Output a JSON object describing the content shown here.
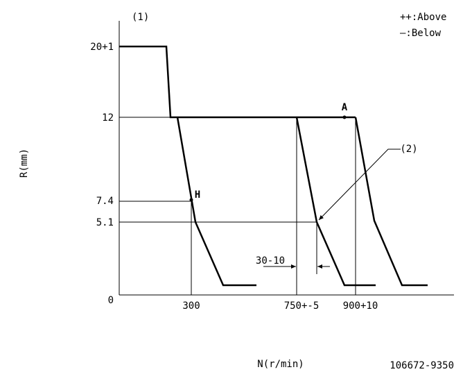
{
  "header": {
    "marker": "(1)",
    "legend_above": "++:Above",
    "legend_below": "—:Below",
    "part_number": "106672-9350"
  },
  "axes": {
    "y_title": "R(mm)",
    "x_title": "N(r/min)",
    "y_ticks": [
      "20+1",
      "12",
      "7.4",
      "5.1",
      "0"
    ],
    "x_ticks": [
      "300",
      "750+-5",
      "900+10"
    ]
  },
  "annotations": {
    "point_a": "A",
    "point_h": "H",
    "marker_2": "(2)",
    "dimension": "30-10"
  }
}
